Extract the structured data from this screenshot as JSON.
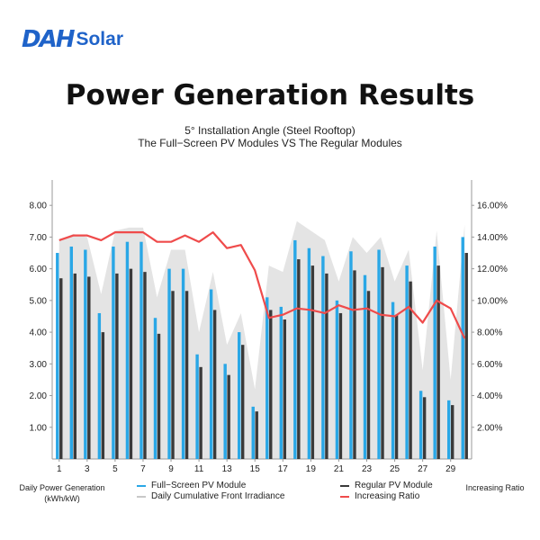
{
  "logo": {
    "mark": "DAH",
    "text": "Solar"
  },
  "header": {
    "title": "Power Generation Results",
    "subtitle_line1": "5°   Installation Angle (Steel Rooftop)",
    "subtitle_line2": "The Full−Screen PV Modules VS The Regular Modules"
  },
  "axes": {
    "left_label_line1": "Daily Power Generation",
    "left_label_line2": "(kWh/kW)",
    "right_label": "Increasing Ratio"
  },
  "legend": {
    "full_screen": "Full−Screen PV Module",
    "irradiance": "Daily Cumulative Front Irradiance",
    "regular": "Regular PV Module",
    "ratio": "Increasing Ratio"
  },
  "colors": {
    "full_screen": "#2aa7e6",
    "regular": "#3a3a3a",
    "ratio": "#ef4b4b",
    "irradiance": "#e4e4e4",
    "axis": "#9a9a9a"
  },
  "chart_data": {
    "type": "bar",
    "days": [
      1,
      2,
      3,
      4,
      5,
      6,
      7,
      8,
      9,
      10,
      11,
      12,
      13,
      14,
      15,
      16,
      17,
      18,
      19,
      20,
      21,
      22,
      23,
      24,
      25,
      26,
      27,
      28,
      29,
      30
    ],
    "x_tick_labels": [
      "1",
      "3",
      "5",
      "7",
      "9",
      "11",
      "13",
      "15",
      "17",
      "19",
      "21",
      "23",
      "25",
      "27",
      "29"
    ],
    "x_tick_days": [
      1,
      3,
      5,
      7,
      9,
      11,
      13,
      15,
      17,
      19,
      21,
      23,
      25,
      27,
      29
    ],
    "ylim_left": [
      0,
      8.8
    ],
    "yticks_left": [
      "1.00",
      "2.00",
      "3.00",
      "4.00",
      "5.00",
      "6.00",
      "7.00",
      "8.00"
    ],
    "ylim_right": [
      0,
      17.6
    ],
    "yticks_right": [
      "2.00%",
      "4.00%",
      "6.00%",
      "8.00%",
      "10.00%",
      "12.00%",
      "14.00%",
      "16.00%"
    ],
    "series": [
      {
        "name": "Full−Screen PV Module",
        "axis": "left",
        "values": [
          6.5,
          6.7,
          6.6,
          4.6,
          6.7,
          6.85,
          6.85,
          4.45,
          6.0,
          6.0,
          3.3,
          5.35,
          3.0,
          4.0,
          1.65,
          5.1,
          4.8,
          6.9,
          6.65,
          6.4,
          5.0,
          6.55,
          5.8,
          6.6,
          4.95,
          6.1,
          2.15,
          6.7,
          1.85,
          7.0
        ]
      },
      {
        "name": "Regular PV Module",
        "axis": "left",
        "values": [
          5.7,
          5.85,
          5.75,
          4.0,
          5.85,
          6.0,
          5.9,
          3.95,
          5.3,
          5.3,
          2.9,
          4.7,
          2.65,
          3.6,
          1.5,
          4.7,
          4.4,
          6.3,
          6.1,
          5.85,
          4.6,
          5.95,
          5.3,
          6.05,
          4.55,
          5.6,
          1.95,
          6.1,
          1.7,
          6.5
        ]
      },
      {
        "name": "Daily Cumulative Front Irradiance",
        "axis": "left",
        "values": [
          6.9,
          7.1,
          7.0,
          5.2,
          7.2,
          7.3,
          7.3,
          5.1,
          6.6,
          6.6,
          4.0,
          5.9,
          3.6,
          4.6,
          2.2,
          6.1,
          5.9,
          7.5,
          7.2,
          6.9,
          5.6,
          7.0,
          6.5,
          7.0,
          5.6,
          6.6,
          2.8,
          7.2,
          2.5,
          7.4
        ]
      },
      {
        "name": "Increasing Ratio",
        "axis": "right",
        "values": [
          13.8,
          14.1,
          14.1,
          13.8,
          14.3,
          14.3,
          14.3,
          13.7,
          13.7,
          14.1,
          13.7,
          14.3,
          13.3,
          13.5,
          11.9,
          8.9,
          9.1,
          9.5,
          9.4,
          9.2,
          9.7,
          9.4,
          9.5,
          9.1,
          9.0,
          9.6,
          8.6,
          10.0,
          9.5,
          7.6
        ]
      }
    ]
  }
}
